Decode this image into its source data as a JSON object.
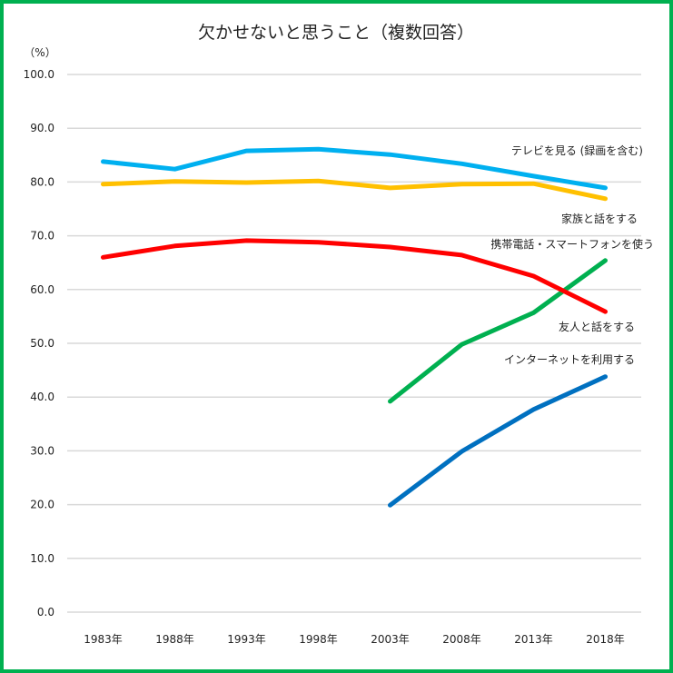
{
  "chart_data": {
    "type": "line",
    "title": "欠かせないと思うこと（複数回答）",
    "ylabel": "（%）",
    "xlabel": "",
    "ylim": [
      0,
      100
    ],
    "yticks": [
      "0.0",
      "10.0",
      "20.0",
      "30.0",
      "40.0",
      "50.0",
      "60.0",
      "70.0",
      "80.0",
      "90.0",
      "100.0"
    ],
    "grid": true,
    "categories": [
      "1983年",
      "1988年",
      "1993年",
      "1998年",
      "2003年",
      "2008年",
      "2013年",
      "2018年"
    ],
    "series": [
      {
        "name": "テレビを見る (録画を含む)",
        "color": "#00b0f0",
        "values": [
          83.8,
          82.4,
          85.8,
          86.1,
          85.1,
          83.4,
          81.1,
          78.9
        ]
      },
      {
        "name": "家族と話をする",
        "color": "#ffc000",
        "values": [
          79.6,
          80.1,
          79.9,
          80.2,
          78.9,
          79.6,
          79.7,
          76.9
        ]
      },
      {
        "name": "携帯電話・スマートフォンを使う",
        "color": "#00b050",
        "values": [
          null,
          null,
          null,
          null,
          39.2,
          49.8,
          55.7,
          65.4
        ]
      },
      {
        "name": "友人と話をする",
        "color": "#ff0000",
        "values": [
          66.0,
          68.1,
          69.1,
          68.8,
          67.9,
          66.4,
          62.5,
          55.9
        ]
      },
      {
        "name": "インターネットを利用する",
        "color": "#0070c0",
        "values": [
          null,
          null,
          null,
          null,
          19.9,
          29.9,
          37.7,
          43.8
        ]
      }
    ],
    "legend": "inline-right"
  }
}
